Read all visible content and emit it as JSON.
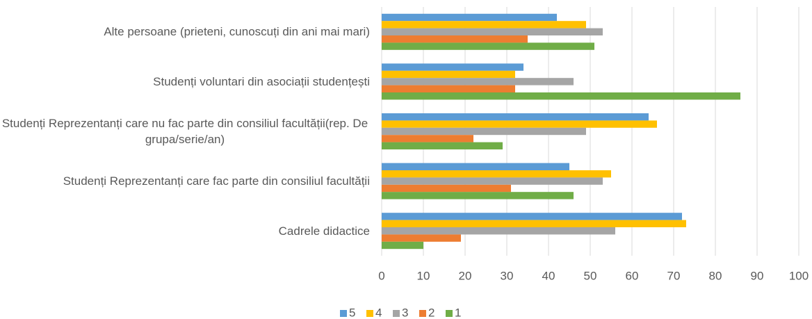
{
  "chart_data": {
    "type": "hbar",
    "categories": [
      "Alte persoane (prieteni, cunoscuți din ani mai mari)",
      "Studenți voluntari din asociații studențești",
      "Studenți Reprezentanți care nu fac parte din consiliul facultății(rep. De grupa/serie/an)",
      "Studenți Reprezentanți care fac parte din consiliul facultății",
      "Cadrele didactice"
    ],
    "series": [
      {
        "name": "5",
        "color": "#5b9bd5",
        "values": [
          42,
          34,
          64,
          45,
          72
        ]
      },
      {
        "name": "4",
        "color": "#ffc000",
        "values": [
          49,
          32,
          66,
          55,
          73
        ]
      },
      {
        "name": "3",
        "color": "#a5a5a5",
        "values": [
          53,
          46,
          49,
          53,
          56
        ]
      },
      {
        "name": "2",
        "color": "#ed7d31",
        "values": [
          35,
          32,
          22,
          31,
          19
        ]
      },
      {
        "name": "1",
        "color": "#70ad47",
        "values": [
          51,
          86,
          29,
          46,
          10
        ]
      }
    ],
    "xlim": [
      0,
      100
    ],
    "xticks": [
      0,
      10,
      20,
      30,
      40,
      50,
      60,
      70,
      80,
      90,
      100
    ],
    "grid": true,
    "legend": "bottom"
  }
}
